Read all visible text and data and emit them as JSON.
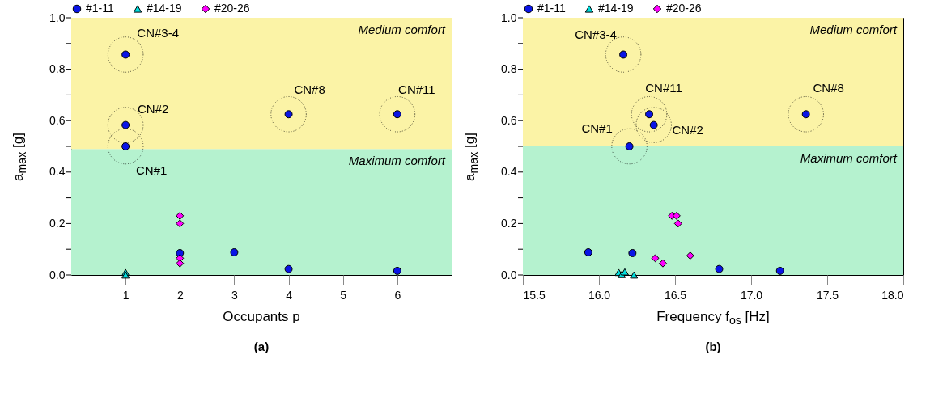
{
  "chart_data": [
    {
      "type": "scatter",
      "title": "(a)",
      "xlabel": "Occupants p",
      "ylabel": "a$_{max}$ [g]",
      "xlim": [
        0,
        7
      ],
      "xticks": [
        1,
        2,
        3,
        4,
        5,
        6
      ],
      "ylim": [
        0,
        1
      ],
      "yticks": [
        {
          "value": 0,
          "label": "0.0"
        },
        {
          "value": 0.1,
          "label": null
        },
        {
          "value": 0.2,
          "label": "0.2"
        },
        {
          "value": 0.3,
          "label": null
        },
        {
          "value": 0.4,
          "label": "0.4"
        },
        {
          "value": 0.5,
          "label": null
        },
        {
          "value": 0.6,
          "label": "0.6"
        },
        {
          "value": 0.7,
          "label": null
        },
        {
          "value": 0.8,
          "label": "0.8"
        },
        {
          "value": 0.9,
          "label": null
        },
        {
          "value": 1,
          "label": "1.0"
        }
      ],
      "grid": false,
      "legend": "top",
      "bands": [
        {
          "axis": "y",
          "from": 0,
          "to": 0.49,
          "label": "Maximum comfort",
          "color": "#b5f2cf"
        },
        {
          "axis": "y",
          "from": 0.49,
          "to": 1,
          "label": "Medium comfort",
          "color": "#fbf3a6"
        }
      ],
      "series": [
        {
          "name": "#1-11",
          "color": "#0a14e6",
          "marker": "circle",
          "x": [
            1,
            1,
            1,
            4,
            6,
            2,
            3,
            4,
            6
          ],
          "values": [
            0.857,
            0.583,
            0.5,
            0.625,
            0.625,
            0.085,
            0.088,
            0.023,
            0.016
          ]
        },
        {
          "name": "#14-19",
          "color": "#00dede",
          "marker": "triangle",
          "x": [
            1,
            1
          ],
          "values": [
            0.01,
            0
          ]
        },
        {
          "name": "#20-26",
          "color": "#ff00ff",
          "marker": "diamond",
          "x": [
            2,
            2,
            2,
            2
          ],
          "values": [
            0.23,
            0.2,
            0.065,
            0.045
          ]
        }
      ],
      "annotations": [
        {
          "text": "CN#3-4",
          "x": 1,
          "y": 0.857
        },
        {
          "text": "CN#2",
          "x": 1,
          "y": 0.583
        },
        {
          "text": "CN#1",
          "x": 1,
          "y": 0.5
        },
        {
          "text": "CN#8",
          "x": 4,
          "y": 0.625
        },
        {
          "text": "CN#11",
          "x": 6,
          "y": 0.625
        }
      ]
    },
    {
      "type": "scatter",
      "title": "(b)",
      "xlabel": "Frequency f$_{os}$ [Hz]",
      "ylabel": "a$_{max}$ [g]",
      "xlim": [
        15.5,
        18
      ],
      "xticks": [
        15.5,
        {
          "value": 16,
          "label": "16.0"
        },
        16.5,
        {
          "value": 17,
          "label": "17.0"
        },
        17.5,
        {
          "value": 18,
          "label": "18.0"
        }
      ],
      "ylim": [
        0,
        1
      ],
      "yticks": [
        {
          "value": 0,
          "label": "0.0"
        },
        {
          "value": 0.1,
          "label": null
        },
        {
          "value": 0.2,
          "label": "0.2"
        },
        {
          "value": 0.3,
          "label": null
        },
        {
          "value": 0.4,
          "label": "0.4"
        },
        {
          "value": 0.5,
          "label": null
        },
        {
          "value": 0.6,
          "label": "0.6"
        },
        {
          "value": 0.7,
          "label": null
        },
        {
          "value": 0.8,
          "label": "0.8"
        },
        {
          "value": 0.9,
          "label": null
        },
        {
          "value": 1,
          "label": "1.0"
        }
      ],
      "grid": false,
      "legend": "top",
      "bands": [
        {
          "axis": "y",
          "from": 0,
          "to": 0.5,
          "label": "Maximum comfort",
          "color": "#b5f2cf"
        },
        {
          "axis": "y",
          "from": 0.5,
          "to": 1,
          "label": "Medium comfort",
          "color": "#fbf3a6"
        }
      ],
      "series": [
        {
          "name": "#1-11",
          "color": "#0a14e6",
          "marker": "circle",
          "x": [
            16.16,
            16.33,
            16.36,
            16.2,
            17.36,
            15.93,
            16.22,
            16.79,
            17.19
          ],
          "values": [
            0.857,
            0.625,
            0.583,
            0.5,
            0.625,
            0.088,
            0.085,
            0.023,
            0.016
          ]
        },
        {
          "name": "#14-19",
          "color": "#00dede",
          "marker": "triangle",
          "x": [
            16.13,
            16.15,
            16.17,
            16.23
          ],
          "values": [
            0.01,
            0.002,
            0.012,
            0
          ]
        },
        {
          "name": "#20-26",
          "color": "#ff00ff",
          "marker": "diamond",
          "x": [
            16.48,
            16.51,
            16.52,
            16.37,
            16.42,
            16.6
          ],
          "values": [
            0.23,
            0.23,
            0.2,
            0.065,
            0.045,
            0.075
          ]
        }
      ],
      "annotations": [
        {
          "text": "CN#3-4",
          "x": 16.16,
          "y": 0.857
        },
        {
          "text": "CN#11",
          "x": 16.33,
          "y": 0.625
        },
        {
          "text": "CN#2",
          "x": 16.36,
          "y": 0.583
        },
        {
          "text": "CN#1",
          "x": 16.2,
          "y": 0.5
        },
        {
          "text": "CN#8",
          "x": 17.36,
          "y": 0.625
        }
      ]
    }
  ]
}
